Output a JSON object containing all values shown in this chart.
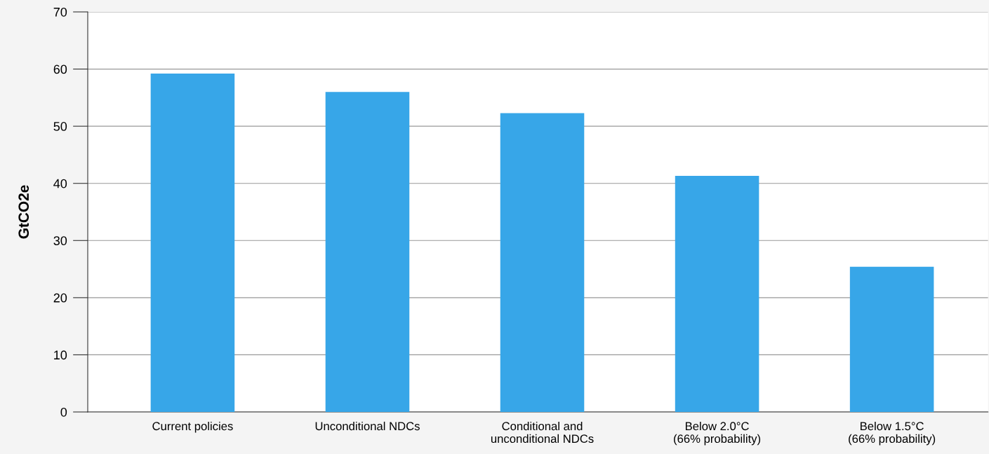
{
  "chart_data": {
    "type": "bar",
    "ylabel": "GtCO2e",
    "categories": [
      "Current policies",
      "Unconditional NDCs",
      "Conditional and\nunconditional NDCs",
      "Below 2.0°C\n(66% probability)",
      "Below 1.5°C\n(66% probability)"
    ],
    "values": [
      59.2,
      56.0,
      52.3,
      41.3,
      25.4
    ],
    "color": "#37a6e8",
    "ylim": [
      0,
      70
    ],
    "yticks": [
      0,
      10,
      20,
      30,
      40,
      50,
      60,
      70
    ],
    "grid": "y"
  }
}
